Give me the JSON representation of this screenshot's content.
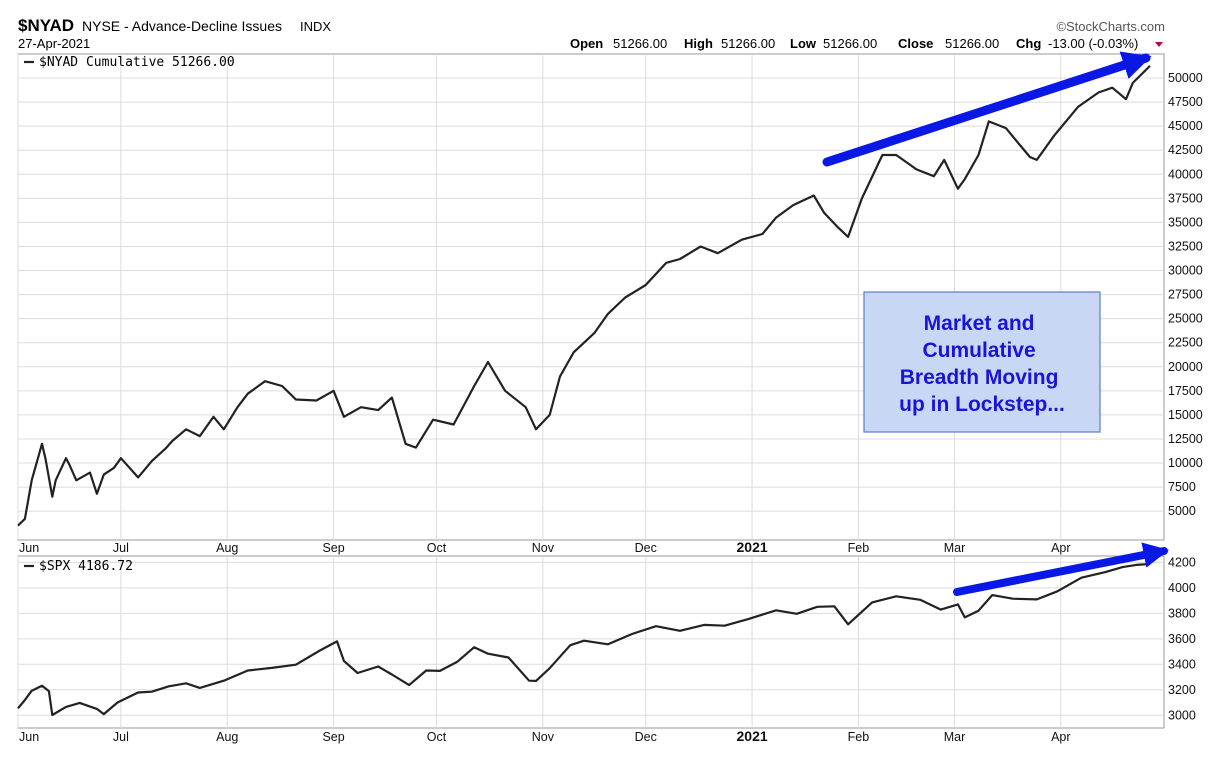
{
  "header": {
    "symbol": "$NYAD",
    "description": "NYSE - Advance-Decline Issues",
    "exchange": "INDX",
    "date": "27-Apr-2021",
    "brand": "©StockCharts.com",
    "open_label": "Open",
    "open_value": "51266.00",
    "high_label": "High",
    "high_value": "51266.00",
    "low_label": "Low",
    "low_value": "51266.00",
    "close_label": "Close",
    "close_value": "51266.00",
    "chg_label": "Chg",
    "chg_value": "-13.00 (-0.03%)"
  },
  "annotation": {
    "text_lines": [
      "Market and",
      "Cumulative",
      "Breadth Moving",
      "up in Lockstep..."
    ],
    "box_fill": "#c8d8f4",
    "box_stroke": "#5a7fc4",
    "text_color": "#1a14d8",
    "arrow_color": "#0a18e6"
  },
  "chart_data": [
    {
      "type": "line",
      "legend": "$NYAD Cumulative 51266.00",
      "x_labels": [
        "Jun",
        "Jul",
        "Aug",
        "Sep",
        "Oct",
        "Nov",
        "Dec",
        "2021",
        "Feb",
        "Mar",
        "Apr"
      ],
      "x_dates": [
        "2020-06-01",
        "2020-07-01",
        "2020-08-01",
        "2020-09-01",
        "2020-10-01",
        "2020-11-01",
        "2020-12-01",
        "2021-01-01",
        "2021-02-01",
        "2021-03-01",
        "2021-04-01"
      ],
      "x_range": [
        "2020-06-01",
        "2021-04-27"
      ],
      "ylim": [
        2000,
        52500
      ],
      "y_ticks": [
        5000,
        7500,
        10000,
        12500,
        15000,
        17500,
        20000,
        22500,
        25000,
        27500,
        30000,
        32500,
        35000,
        37500,
        40000,
        42500,
        45000,
        47500,
        50000
      ],
      "grid": true,
      "axis_side": "right",
      "line_color": "#222222",
      "series": [
        {
          "dates": [
            "2020-06-01",
            "2020-06-03",
            "2020-06-05",
            "2020-06-08",
            "2020-06-09",
            "2020-06-11",
            "2020-06-12",
            "2020-06-15",
            "2020-06-16",
            "2020-06-18",
            "2020-06-22",
            "2020-06-24",
            "2020-06-26",
            "2020-06-29",
            "2020-07-01",
            "2020-07-06",
            "2020-07-10",
            "2020-07-14",
            "2020-07-16",
            "2020-07-20",
            "2020-07-24",
            "2020-07-28",
            "2020-07-31",
            "2020-08-04",
            "2020-08-07",
            "2020-08-12",
            "2020-08-17",
            "2020-08-21",
            "2020-08-27",
            "2020-09-01",
            "2020-09-04",
            "2020-09-09",
            "2020-09-14",
            "2020-09-18",
            "2020-09-22",
            "2020-09-25",
            "2020-09-30",
            "2020-10-06",
            "2020-10-12",
            "2020-10-16",
            "2020-10-21",
            "2020-10-27",
            "2020-10-30",
            "2020-11-03",
            "2020-11-06",
            "2020-11-10",
            "2020-11-16",
            "2020-11-20",
            "2020-11-25",
            "2020-12-01",
            "2020-12-07",
            "2020-12-11",
            "2020-12-17",
            "2020-12-22",
            "2020-12-29",
            "2021-01-04",
            "2021-01-08",
            "2021-01-13",
            "2021-01-19",
            "2021-01-22",
            "2021-01-26",
            "2021-01-29",
            "2021-02-02",
            "2021-02-08",
            "2021-02-12",
            "2021-02-18",
            "2021-02-23",
            "2021-02-26",
            "2021-03-02",
            "2021-03-04",
            "2021-03-08",
            "2021-03-11",
            "2021-03-16",
            "2021-03-19",
            "2021-03-23",
            "2021-03-25",
            "2021-03-30",
            "2021-04-06",
            "2021-04-12",
            "2021-04-16",
            "2021-04-20",
            "2021-04-22",
            "2021-04-27"
          ],
          "values": [
            3500,
            4200,
            8200,
            12000,
            10500,
            6500,
            8200,
            10500,
            9800,
            8200,
            9000,
            6800,
            8800,
            9500,
            10500,
            8500,
            10200,
            11500,
            12300,
            13500,
            12800,
            14800,
            13500,
            15800,
            17200,
            18500,
            18000,
            16600,
            16500,
            17500,
            14800,
            15800,
            15500,
            16800,
            12000,
            11600,
            14500,
            14000,
            18000,
            20500,
            17500,
            15800,
            13500,
            15000,
            19000,
            21500,
            23500,
            25500,
            27200,
            28500,
            30800,
            31200,
            32500,
            31800,
            33200,
            33800,
            35500,
            36800,
            37800,
            36000,
            34500,
            33500,
            37500,
            42000,
            42000,
            40500,
            39800,
            41500,
            38500,
            39500,
            42000,
            45500,
            44800,
            43500,
            41800,
            41500,
            44000,
            47000,
            48500,
            49000,
            47800,
            49500,
            51266
          ]
        }
      ]
    },
    {
      "type": "line",
      "legend": "$SPX 4186.72",
      "x_labels": [
        "Jun",
        "Jul",
        "Aug",
        "Sep",
        "Oct",
        "Nov",
        "Dec",
        "2021",
        "Feb",
        "Mar",
        "Apr"
      ],
      "x_dates": [
        "2020-06-01",
        "2020-07-01",
        "2020-08-01",
        "2020-09-01",
        "2020-10-01",
        "2020-11-01",
        "2020-12-01",
        "2021-01-01",
        "2021-02-01",
        "2021-03-01",
        "2021-04-01"
      ],
      "x_range": [
        "2020-06-01",
        "2021-04-27"
      ],
      "ylim": [
        2900,
        4250
      ],
      "y_ticks": [
        3000,
        3200,
        3400,
        3600,
        3800,
        4000,
        4200
      ],
      "grid": true,
      "axis_side": "right",
      "line_color": "#222222",
      "series": [
        {
          "dates": [
            "2020-06-01",
            "2020-06-03",
            "2020-06-05",
            "2020-06-08",
            "2020-06-10",
            "2020-06-11",
            "2020-06-15",
            "2020-06-19",
            "2020-06-24",
            "2020-06-26",
            "2020-06-30",
            "2020-07-06",
            "2020-07-10",
            "2020-07-15",
            "2020-07-20",
            "2020-07-24",
            "2020-07-31",
            "2020-08-07",
            "2020-08-14",
            "2020-08-21",
            "2020-08-28",
            "2020-09-02",
            "2020-09-04",
            "2020-09-08",
            "2020-09-14",
            "2020-09-18",
            "2020-09-23",
            "2020-09-28",
            "2020-10-02",
            "2020-10-07",
            "2020-10-12",
            "2020-10-16",
            "2020-10-22",
            "2020-10-28",
            "2020-10-30",
            "2020-11-03",
            "2020-11-09",
            "2020-11-13",
            "2020-11-20",
            "2020-11-27",
            "2020-12-04",
            "2020-12-11",
            "2020-12-18",
            "2020-12-24",
            "2020-12-31",
            "2021-01-08",
            "2021-01-14",
            "2021-01-20",
            "2021-01-25",
            "2021-01-29",
            "2021-02-05",
            "2021-02-12",
            "2021-02-19",
            "2021-02-25",
            "2021-03-02",
            "2021-03-04",
            "2021-03-08",
            "2021-03-12",
            "2021-03-18",
            "2021-03-25",
            "2021-03-31",
            "2021-04-07",
            "2021-04-14",
            "2021-04-19",
            "2021-04-23",
            "2021-04-27"
          ],
          "values": [
            3055,
            3120,
            3193,
            3232,
            3190,
            3002,
            3066,
            3097,
            3050,
            3009,
            3100,
            3179,
            3185,
            3227,
            3251,
            3215,
            3271,
            3351,
            3372,
            3397,
            3508,
            3580,
            3427,
            3332,
            3383,
            3320,
            3237,
            3351,
            3348,
            3419,
            3534,
            3483,
            3453,
            3271,
            3270,
            3369,
            3550,
            3585,
            3557,
            3638,
            3699,
            3663,
            3709,
            3703,
            3756,
            3824,
            3796,
            3851,
            3855,
            3714,
            3886,
            3934,
            3906,
            3829,
            3870,
            3768,
            3821,
            3943,
            3915,
            3909,
            3973,
            4080,
            4124,
            4163,
            4180,
            4187
          ]
        }
      ]
    }
  ]
}
